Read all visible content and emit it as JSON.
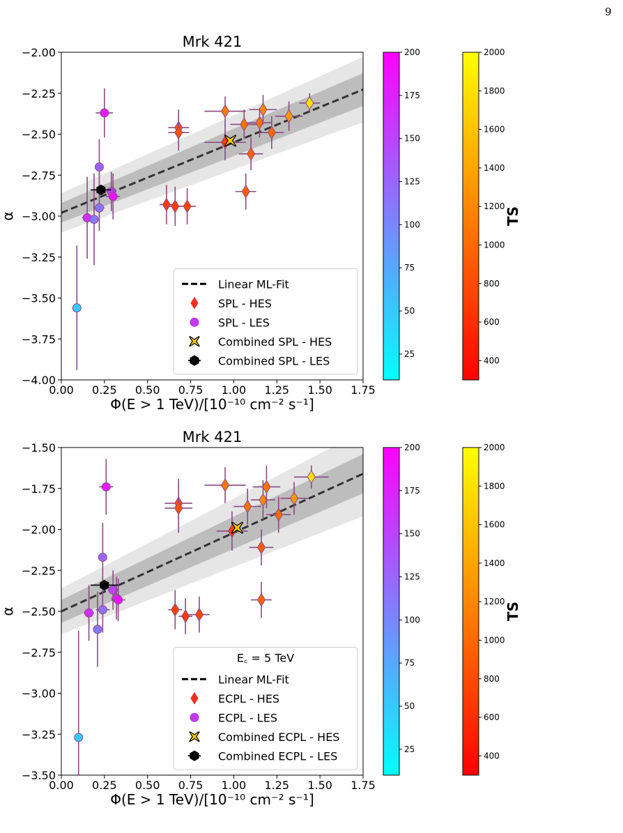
{
  "page_number": "9",
  "colorbars": {
    "les": {
      "ticks": [
        "25",
        "50",
        "75",
        "100",
        "125",
        "150",
        "175",
        "200"
      ],
      "tick_values": [
        25,
        50,
        75,
        100,
        125,
        150,
        175,
        200
      ],
      "range": [
        10,
        200
      ],
      "colors": [
        "#00ffff",
        "#ff00ff"
      ]
    },
    "hes": {
      "label": "TS",
      "ticks": [
        "400",
        "600",
        "800",
        "1000",
        "1200",
        "1400",
        "1600",
        "1800",
        "2000"
      ],
      "tick_values": [
        400,
        600,
        800,
        1000,
        1200,
        1400,
        1600,
        1800,
        2000
      ],
      "range": [
        300,
        2000
      ],
      "colors": [
        "#ff0000",
        "#ffff00"
      ]
    }
  },
  "chart_data": [
    {
      "type": "scatter",
      "title": "Mrk 421",
      "xlabel": "Φ(E > 1 TeV)/[10⁻¹⁰ cm⁻² s⁻¹]",
      "ylabel": "α",
      "xlim": [
        0.0,
        1.75
      ],
      "ylim": [
        -4.0,
        -2.0
      ],
      "xticks": [
        "0.00",
        "0.25",
        "0.50",
        "0.75",
        "1.00",
        "1.25",
        "1.50",
        "1.75"
      ],
      "yticks": [
        "−4.00",
        "−3.75",
        "−3.50",
        "−3.25",
        "−3.00",
        "−2.75",
        "−2.50",
        "−2.25",
        "−2.00"
      ],
      "xtick_values": [
        0,
        0.25,
        0.5,
        0.75,
        1.0,
        1.25,
        1.5,
        1.75
      ],
      "ytick_values": [
        -4.0,
        -3.75,
        -3.5,
        -3.25,
        -3.0,
        -2.75,
        -2.5,
        -2.25,
        -2.0
      ],
      "fit": {
        "intercept": -2.98,
        "slope": 0.43,
        "inner_band": [
          0.06,
          0.1
        ],
        "outer_band": [
          0.12,
          0.2
        ]
      },
      "legend": {
        "entries": [
          "Linear ML-Fit",
          "SPL - HES",
          "SPL - LES",
          "Combined SPL - HES",
          "Combined SPL - LES"
        ]
      },
      "series": [
        {
          "name": "SPL - HES",
          "marker": "diamond",
          "points": [
            {
              "x": 0.61,
              "y": -2.93,
              "xerr": 0.04,
              "yerr": 0.12,
              "ts": 700
            },
            {
              "x": 0.66,
              "y": -2.94,
              "xerr": 0.04,
              "yerr": 0.12,
              "ts": 700
            },
            {
              "x": 0.73,
              "y": -2.94,
              "xerr": 0.05,
              "yerr": 0.11,
              "ts": 750
            },
            {
              "x": 0.68,
              "y": -2.46,
              "xerr": 0.06,
              "yerr": 0.11,
              "ts": 850
            },
            {
              "x": 0.68,
              "y": -2.49,
              "xerr": 0.06,
              "yerr": 0.11,
              "ts": 850
            },
            {
              "x": 0.95,
              "y": -2.36,
              "xerr": 0.12,
              "yerr": 0.09,
              "ts": 1100
            },
            {
              "x": 0.95,
              "y": -2.55,
              "xerr": 0.12,
              "yerr": 0.11,
              "ts": 700
            },
            {
              "x": 1.06,
              "y": -2.44,
              "xerr": 0.08,
              "yerr": 0.09,
              "ts": 1050
            },
            {
              "x": 1.07,
              "y": -2.85,
              "xerr": 0.06,
              "yerr": 0.11,
              "ts": 900
            },
            {
              "x": 1.1,
              "y": -2.62,
              "xerr": 0.07,
              "yerr": 0.1,
              "ts": 950
            },
            {
              "x": 1.15,
              "y": -2.43,
              "xerr": 0.07,
              "yerr": 0.09,
              "ts": 1050
            },
            {
              "x": 1.17,
              "y": -2.35,
              "xerr": 0.08,
              "yerr": 0.09,
              "ts": 1200
            },
            {
              "x": 1.22,
              "y": -2.49,
              "xerr": 0.07,
              "yerr": 0.1,
              "ts": 1000
            },
            {
              "x": 1.32,
              "y": -2.39,
              "xerr": 0.08,
              "yerr": 0.09,
              "ts": 1300
            },
            {
              "x": 1.44,
              "y": -2.31,
              "xerr": 0.06,
              "yerr": 0.06,
              "ts": 1800
            }
          ]
        },
        {
          "name": "SPL - LES",
          "marker": "circle",
          "points": [
            {
              "x": 0.09,
              "y": -3.56,
              "xerr": 0.01,
              "yerr": 0.38,
              "ts": 50
            },
            {
              "x": 0.15,
              "y": -3.01,
              "xerr": 0.03,
              "yerr": 0.25,
              "ts": 165
            },
            {
              "x": 0.19,
              "y": -3.02,
              "xerr": 0.02,
              "yerr": 0.28,
              "ts": 110
            },
            {
              "x": 0.22,
              "y": -2.7,
              "xerr": 0.02,
              "yerr": 0.17,
              "ts": 125
            },
            {
              "x": 0.22,
              "y": -2.95,
              "xerr": 0.03,
              "yerr": 0.14,
              "ts": 115
            },
            {
              "x": 0.25,
              "y": -2.37,
              "xerr": 0.05,
              "yerr": 0.15,
              "ts": 180
            },
            {
              "x": 0.29,
              "y": -2.85,
              "xerr": 0.03,
              "yerr": 0.12,
              "ts": 150
            },
            {
              "x": 0.3,
              "y": -2.88,
              "xerr": 0.04,
              "yerr": 0.14,
              "ts": 185
            }
          ]
        },
        {
          "name": "Combined SPL - HES",
          "marker": "x",
          "points": [
            {
              "x": 0.98,
              "y": -2.54,
              "xerr": 0.01,
              "yerr": 0.01
            }
          ]
        },
        {
          "name": "Combined SPL - LES",
          "marker": "hexagon",
          "points": [
            {
              "x": 0.23,
              "y": -2.84,
              "xerr": 0.06,
              "yerr": 0.01
            }
          ]
        }
      ]
    },
    {
      "type": "scatter",
      "title": "Mrk 421",
      "xlabel": "Φ(E > 1 TeV)/[10⁻¹⁰ cm⁻² s⁻¹]",
      "ylabel": "α",
      "xlim": [
        0.0,
        1.75
      ],
      "ylim": [
        -3.5,
        -1.5
      ],
      "xticks": [
        "0.00",
        "0.25",
        "0.50",
        "0.75",
        "1.00",
        "1.25",
        "1.50",
        "1.75"
      ],
      "yticks": [
        "−3.50",
        "−3.25",
        "−3.00",
        "−2.75",
        "−2.50",
        "−2.25",
        "−2.00",
        "−1.75",
        "−1.50"
      ],
      "xtick_values": [
        0,
        0.25,
        0.5,
        0.75,
        1.0,
        1.25,
        1.5,
        1.75
      ],
      "ytick_values": [
        -3.5,
        -3.25,
        -3.0,
        -2.75,
        -2.5,
        -2.25,
        -2.0,
        -1.75,
        -1.5
      ],
      "fit": {
        "intercept": -2.5,
        "slope": 0.48,
        "inner_band": [
          0.07,
          0.12
        ],
        "outer_band": [
          0.14,
          0.26
        ]
      },
      "legend": {
        "title": "E꜀ = 5 TeV",
        "entries": [
          "Linear ML-Fit",
          "ECPL - HES",
          "ECPL - LES",
          "Combined ECPL - HES",
          "Combined ECPL - LES"
        ]
      },
      "series": [
        {
          "name": "ECPL - HES",
          "marker": "diamond",
          "points": [
            {
              "x": 0.66,
              "y": -2.49,
              "xerr": 0.04,
              "yerr": 0.12,
              "ts": 700
            },
            {
              "x": 0.72,
              "y": -2.53,
              "xerr": 0.04,
              "yerr": 0.11,
              "ts": 700
            },
            {
              "x": 0.8,
              "y": -2.52,
              "xerr": 0.06,
              "yerr": 0.11,
              "ts": 750
            },
            {
              "x": 0.68,
              "y": -1.84,
              "xerr": 0.08,
              "yerr": 0.15,
              "ts": 850
            },
            {
              "x": 0.68,
              "y": -1.87,
              "xerr": 0.08,
              "yerr": 0.15,
              "ts": 850
            },
            {
              "x": 0.95,
              "y": -1.73,
              "xerr": 0.12,
              "yerr": 0.11,
              "ts": 1100
            },
            {
              "x": 0.99,
              "y": -2.01,
              "xerr": 0.09,
              "yerr": 0.12,
              "ts": 700
            },
            {
              "x": 1.08,
              "y": -1.86,
              "xerr": 0.08,
              "yerr": 0.11,
              "ts": 1050
            },
            {
              "x": 1.16,
              "y": -2.11,
              "xerr": 0.07,
              "yerr": 0.11,
              "ts": 900
            },
            {
              "x": 1.16,
              "y": -2.43,
              "xerr": 0.06,
              "yerr": 0.11,
              "ts": 950
            },
            {
              "x": 1.17,
              "y": -1.82,
              "xerr": 0.07,
              "yerr": 0.12,
              "ts": 1200
            },
            {
              "x": 1.19,
              "y": -1.74,
              "xerr": 0.08,
              "yerr": 0.13,
              "ts": 1050
            },
            {
              "x": 1.26,
              "y": -1.91,
              "xerr": 0.07,
              "yerr": 0.11,
              "ts": 1000
            },
            {
              "x": 1.35,
              "y": -1.81,
              "xerr": 0.08,
              "yerr": 0.1,
              "ts": 1300
            },
            {
              "x": 1.45,
              "y": -1.68,
              "xerr": 0.1,
              "yerr": 0.07,
              "ts": 1800
            }
          ]
        },
        {
          "name": "ECPL - LES",
          "marker": "circle",
          "points": [
            {
              "x": 0.1,
              "y": -3.27,
              "xerr": 0.02,
              "yerr": 0.65,
              "ts": 50
            },
            {
              "x": 0.16,
              "y": -2.51,
              "xerr": 0.03,
              "yerr": 0.17,
              "ts": 165
            },
            {
              "x": 0.21,
              "y": -2.61,
              "xerr": 0.02,
              "yerr": 0.23,
              "ts": 110
            },
            {
              "x": 0.24,
              "y": -2.17,
              "xerr": 0.02,
              "yerr": 0.21,
              "ts": 125
            },
            {
              "x": 0.24,
              "y": -2.49,
              "xerr": 0.04,
              "yerr": 0.14,
              "ts": 115
            },
            {
              "x": 0.26,
              "y": -1.74,
              "xerr": 0.04,
              "yerr": 0.17,
              "ts": 180
            },
            {
              "x": 0.3,
              "y": -2.37,
              "xerr": 0.03,
              "yerr": 0.12,
              "ts": 150
            },
            {
              "x": 0.32,
              "y": -2.42,
              "xerr": 0.03,
              "yerr": 0.13,
              "ts": 170
            },
            {
              "x": 0.33,
              "y": -2.43,
              "xerr": 0.04,
              "yerr": 0.13,
              "ts": 185
            }
          ]
        },
        {
          "name": "Combined ECPL - HES",
          "marker": "x",
          "points": [
            {
              "x": 1.02,
              "y": -1.99,
              "xerr": 0.01,
              "yerr": 0.01
            }
          ]
        },
        {
          "name": "Combined ECPL - LES",
          "marker": "hexagon",
          "points": [
            {
              "x": 0.25,
              "y": -2.34,
              "xerr": 0.08,
              "yerr": 0.02
            }
          ]
        }
      ]
    }
  ]
}
